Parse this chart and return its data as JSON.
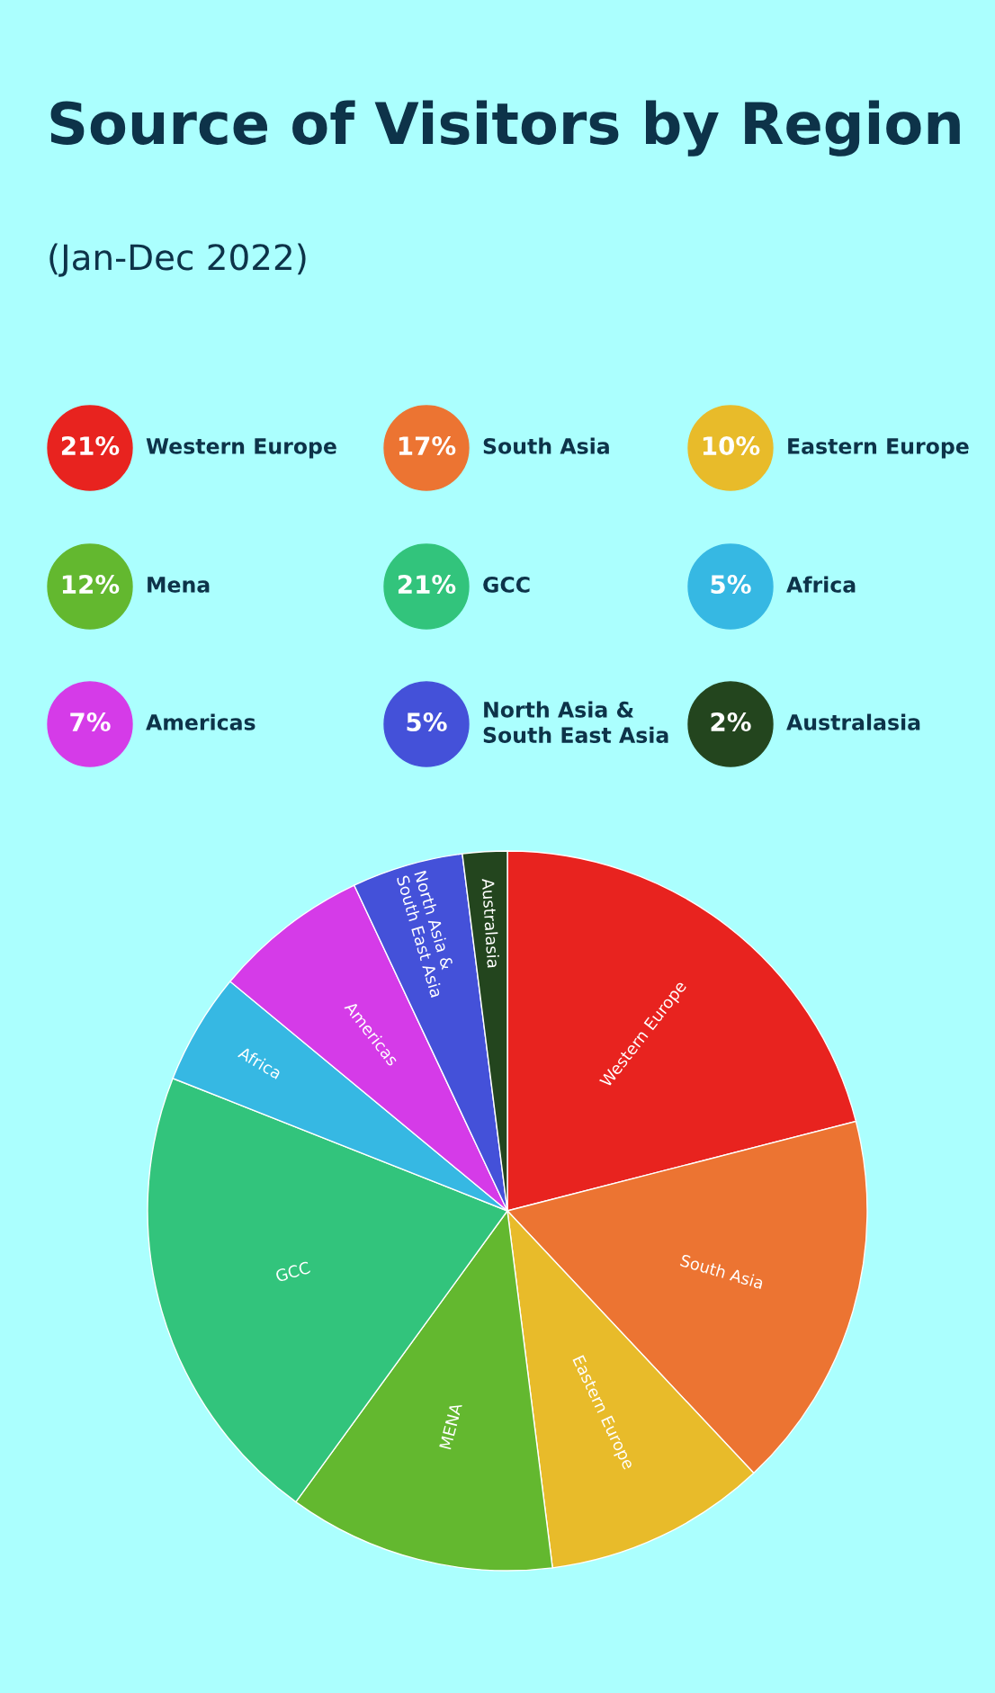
{
  "chart_data": {
    "type": "pie",
    "title": "Source of Visitors by Region",
    "subtitle": "(Jan-Dec 2022)",
    "categories": [
      "Western Europe",
      "South Asia",
      "Eastern Europe",
      "MENA",
      "GCC",
      "Africa",
      "Americas",
      "North Asia & South East Asia",
      "Australasia"
    ],
    "values": [
      21,
      17,
      10,
      12,
      21,
      5,
      7,
      5,
      2
    ],
    "colors": [
      "#e8231f",
      "#ec7432",
      "#e8bb2a",
      "#63b82f",
      "#32c47c",
      "#36b8e3",
      "#d53be8",
      "#4451d9",
      "#23451e"
    ],
    "annotations": [
      "21%",
      "Western Europe",
      "17%",
      "South Asia",
      "10%",
      "Eastern Europe",
      "12%",
      "Mena",
      "21%",
      "GCC",
      "5%",
      "Africa",
      "7%",
      "Americas",
      "5%",
      "North Asia &\nSouth East Asia",
      "2%",
      "Australasia"
    ]
  }
}
